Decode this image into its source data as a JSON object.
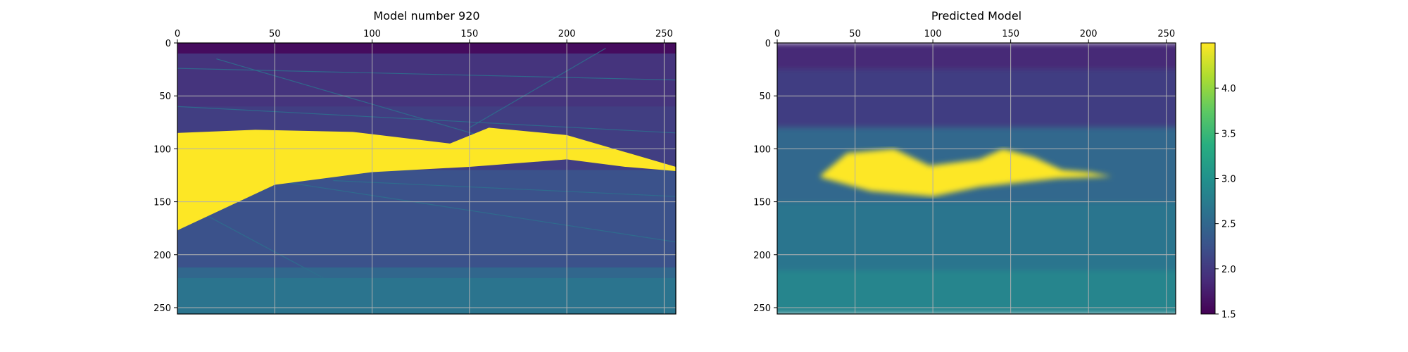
{
  "chart_data": [
    {
      "type": "heatmap",
      "title": "Model number 920",
      "xlabel": "",
      "ylabel": "",
      "xlim": [
        0,
        256
      ],
      "ylim": [
        256,
        0
      ],
      "x_axis_position": "top",
      "xticks": [
        0,
        50,
        100,
        150,
        200,
        250
      ],
      "yticks": [
        0,
        50,
        100,
        150,
        200,
        250
      ],
      "grid": true,
      "colormap": "viridis",
      "value_range": [
        1.5,
        4.5
      ],
      "background_layers": [
        {
          "depth_from": 0,
          "depth_to": 10,
          "value": 1.6
        },
        {
          "depth_from": 10,
          "depth_to": 60,
          "value": 1.95
        },
        {
          "depth_from": 60,
          "depth_to": 120,
          "value": 2.05
        },
        {
          "depth_from": 120,
          "depth_to": 212,
          "value": 2.25
        },
        {
          "depth_from": 212,
          "depth_to": 222,
          "value": 2.5
        },
        {
          "depth_from": 222,
          "depth_to": 256,
          "value": 2.65
        }
      ],
      "body": {
        "value": 4.5,
        "top": [
          [
            0,
            85
          ],
          [
            40,
            82
          ],
          [
            90,
            84
          ],
          [
            140,
            95
          ],
          [
            160,
            80
          ],
          [
            200,
            87
          ],
          [
            256,
            117
          ]
        ],
        "bottom": [
          [
            256,
            121
          ],
          [
            230,
            117
          ],
          [
            200,
            110
          ],
          [
            150,
            117
          ],
          [
            100,
            122
          ],
          [
            50,
            134
          ],
          [
            0,
            177
          ]
        ]
      },
      "faults": [
        [
          [
            20,
            15
          ],
          [
            160,
            90
          ]
        ],
        [
          [
            220,
            5
          ],
          [
            150,
            80
          ]
        ],
        [
          [
            50,
            130
          ],
          [
            256,
            188
          ]
        ],
        [
          [
            80,
            130
          ],
          [
            256,
            145
          ]
        ],
        [
          [
            12,
            160
          ],
          [
            75,
            222
          ]
        ],
        [
          [
            0,
            60
          ],
          [
            256,
            85
          ]
        ],
        [
          [
            0,
            24
          ],
          [
            256,
            35
          ]
        ]
      ]
    },
    {
      "type": "heatmap",
      "title": "Predicted Model",
      "xlabel": "",
      "ylabel": "",
      "xlim": [
        0,
        256
      ],
      "ylim": [
        256,
        0
      ],
      "x_axis_position": "top",
      "xticks": [
        0,
        50,
        100,
        150,
        200,
        250
      ],
      "yticks": [
        0,
        50,
        100,
        150,
        200,
        250
      ],
      "grid": true,
      "colormap": "viridis",
      "value_range": [
        1.5,
        4.5
      ],
      "background_layers": [
        {
          "depth_from": 0,
          "depth_to": 25,
          "value": 1.85
        },
        {
          "depth_from": 25,
          "depth_to": 80,
          "value": 2.05
        },
        {
          "depth_from": 80,
          "depth_to": 150,
          "value": 2.5
        },
        {
          "depth_from": 150,
          "depth_to": 215,
          "value": 2.65
        },
        {
          "depth_from": 215,
          "depth_to": 256,
          "value": 2.85
        }
      ],
      "body": {
        "value": 4.5,
        "top": [
          [
            28,
            125
          ],
          [
            45,
            104
          ],
          [
            75,
            100
          ],
          [
            98,
            116
          ],
          [
            130,
            110
          ],
          [
            145,
            100
          ],
          [
            165,
            108
          ],
          [
            183,
            120
          ],
          [
            200,
            122
          ],
          [
            215,
            126
          ]
        ],
        "bottom": [
          [
            215,
            126
          ],
          [
            180,
            128
          ],
          [
            130,
            136
          ],
          [
            100,
            145
          ],
          [
            60,
            140
          ],
          [
            28,
            127
          ]
        ]
      },
      "colorbar": {
        "ticks": [
          1.5,
          2.0,
          2.5,
          3.0,
          3.5,
          4.0
        ],
        "tick_labels": [
          "1.5",
          "2.0",
          "2.5",
          "3.0",
          "3.5",
          "4.0"
        ],
        "range": [
          1.5,
          4.5
        ]
      }
    }
  ]
}
